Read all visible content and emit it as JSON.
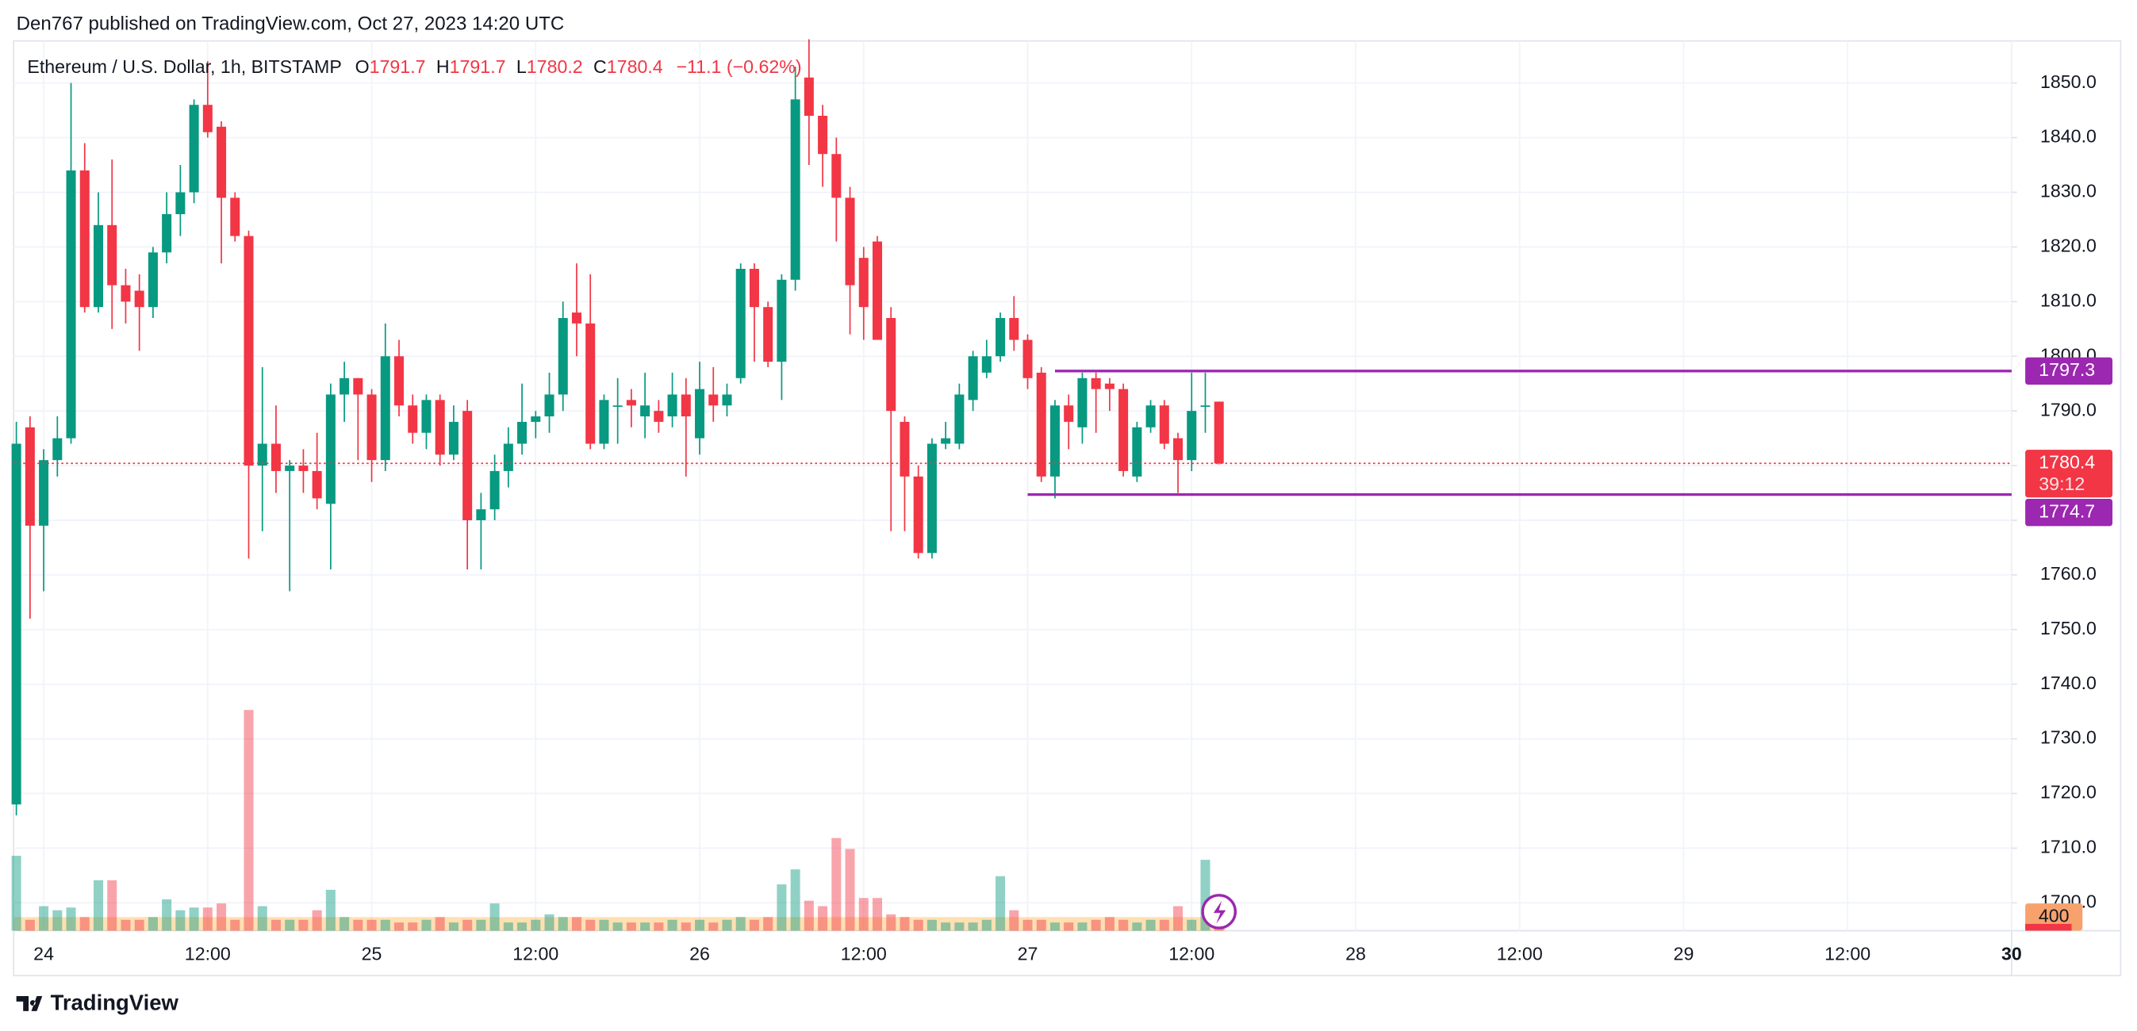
{
  "header": {
    "publisher": "Den767 published on TradingView.com, Oct 27, 2023 14:20 UTC"
  },
  "footer": {
    "brand": "TradingView"
  },
  "chart_data": {
    "type": "candlestick",
    "title": "Ethereum / U.S. Dollar, 1h, BITSTAMP",
    "ohlc_letters": [
      "O",
      "H",
      "L",
      "C"
    ],
    "change_label": "−11.1 (−0.62%)",
    "countdown": "39:12",
    "up_color": "#089981",
    "down_color": "#f23645",
    "x": [
      "2023-10-23 22:00",
      "2023-10-23 23:00",
      "2023-10-24 00:00",
      "2023-10-24 01:00",
      "2023-10-24 02:00",
      "2023-10-24 03:00",
      "2023-10-24 04:00",
      "2023-10-24 05:00",
      "2023-10-24 06:00",
      "2023-10-24 07:00",
      "2023-10-24 08:00",
      "2023-10-24 09:00",
      "2023-10-24 10:00",
      "2023-10-24 11:00",
      "2023-10-24 12:00",
      "2023-10-24 13:00",
      "2023-10-24 14:00",
      "2023-10-24 15:00",
      "2023-10-24 16:00",
      "2023-10-24 17:00",
      "2023-10-24 18:00",
      "2023-10-24 19:00",
      "2023-10-24 20:00",
      "2023-10-24 21:00",
      "2023-10-24 22:00",
      "2023-10-24 23:00",
      "2023-10-25 00:00",
      "2023-10-25 01:00",
      "2023-10-25 02:00",
      "2023-10-25 03:00",
      "2023-10-25 04:00",
      "2023-10-25 05:00",
      "2023-10-25 06:00",
      "2023-10-25 07:00",
      "2023-10-25 08:00",
      "2023-10-25 09:00",
      "2023-10-25 10:00",
      "2023-10-25 11:00",
      "2023-10-25 12:00",
      "2023-10-25 13:00",
      "2023-10-25 14:00",
      "2023-10-25 15:00",
      "2023-10-25 16:00",
      "2023-10-25 17:00",
      "2023-10-25 18:00",
      "2023-10-25 19:00",
      "2023-10-25 20:00",
      "2023-10-25 21:00",
      "2023-10-25 22:00",
      "2023-10-25 23:00",
      "2023-10-26 00:00",
      "2023-10-26 01:00",
      "2023-10-26 02:00",
      "2023-10-26 03:00",
      "2023-10-26 04:00",
      "2023-10-26 05:00",
      "2023-10-26 06:00",
      "2023-10-26 07:00",
      "2023-10-26 08:00",
      "2023-10-26 09:00",
      "2023-10-26 10:00",
      "2023-10-26 11:00",
      "2023-10-26 12:00",
      "2023-10-26 13:00",
      "2023-10-26 14:00",
      "2023-10-26 15:00",
      "2023-10-26 16:00",
      "2023-10-26 17:00",
      "2023-10-26 18:00",
      "2023-10-26 19:00",
      "2023-10-26 20:00",
      "2023-10-26 21:00",
      "2023-10-26 22:00",
      "2023-10-26 23:00",
      "2023-10-27 00:00",
      "2023-10-27 01:00",
      "2023-10-27 02:00",
      "2023-10-27 03:00",
      "2023-10-27 04:00",
      "2023-10-27 05:00",
      "2023-10-27 06:00",
      "2023-10-27 07:00",
      "2023-10-27 08:00",
      "2023-10-27 09:00",
      "2023-10-27 10:00",
      "2023-10-27 11:00",
      "2023-10-27 12:00",
      "2023-10-27 13:00",
      "2023-10-27 14:00"
    ],
    "open": [
      1718,
      1787,
      1769,
      1781,
      1785,
      1834,
      1809,
      1824,
      1813,
      1812,
      1809,
      1819,
      1826,
      1830,
      1846,
      1842,
      1829,
      1822,
      1780,
      1784,
      1779,
      1780,
      1779,
      1773,
      1793,
      1796,
      1793,
      1781,
      1800,
      1791,
      1786,
      1792,
      1782,
      1790,
      1770,
      1772,
      1779,
      1784,
      1788,
      1789,
      1793,
      1808,
      1806,
      1784,
      1791,
      1792,
      1789,
      1790,
      1789,
      1793,
      1785,
      1793,
      1791,
      1796,
      1816,
      1809,
      1799,
      1814,
      1851,
      1844,
      1837,
      1829,
      1818,
      1821,
      1807,
      1788,
      1778,
      1764,
      1784,
      1784,
      1792,
      1797,
      1800,
      1807,
      1803,
      1797,
      1778,
      1791,
      1787,
      1796,
      1795,
      1794,
      1778,
      1787,
      1791,
      1785,
      1781,
      1791,
      1791.7
    ],
    "high": [
      1788,
      1789,
      1783,
      1789,
      1850,
      1839,
      1830,
      1836,
      1816,
      1815,
      1820,
      1830,
      1835,
      1847,
      1854,
      1843,
      1830,
      1823,
      1798,
      1791,
      1781,
      1783,
      1786,
      1795,
      1799,
      1796,
      1794,
      1806,
      1803,
      1793,
      1793,
      1793,
      1791,
      1792,
      1775,
      1782,
      1787,
      1795,
      1790,
      1797,
      1810,
      1817,
      1815,
      1793,
      1796,
      1794,
      1797,
      1792,
      1797,
      1796,
      1799,
      1798,
      1795,
      1817,
      1817,
      1810,
      1815,
      1853,
      1858,
      1846,
      1840,
      1831,
      1820,
      1822,
      1809,
      1789,
      1780,
      1785,
      1788,
      1795,
      1801,
      1803,
      1808,
      1811,
      1804,
      1798,
      1792,
      1793,
      1797,
      1797,
      1796,
      1795,
      1788,
      1792,
      1792,
      1786,
      1797,
      1797,
      1791.7
    ],
    "low": [
      1716,
      1752,
      1757,
      1778,
      1784,
      1808,
      1808,
      1805,
      1806,
      1801,
      1807,
      1817,
      1822,
      1828,
      1840,
      1817,
      1821,
      1763,
      1768,
      1775,
      1757,
      1775,
      1772,
      1761,
      1788,
      1781,
      1777,
      1779,
      1789,
      1784,
      1783,
      1780,
      1781,
      1761,
      1761,
      1770,
      1776,
      1782,
      1785,
      1786,
      1790,
      1800,
      1783,
      1783,
      1784,
      1787,
      1785,
      1786,
      1787,
      1778,
      1782,
      1788,
      1789,
      1795,
      1799,
      1798,
      1792,
      1812,
      1835,
      1831,
      1821,
      1804,
      1803,
      1803,
      1768,
      1768,
      1763,
      1763,
      1783,
      1783,
      1790,
      1796,
      1799,
      1801,
      1794,
      1777,
      1774,
      1783,
      1784,
      1786,
      1790,
      1778,
      1777,
      1786,
      1783,
      1775,
      1779,
      1786,
      1780.2
    ],
    "close": [
      1784,
      1769,
      1781,
      1785,
      1834,
      1809,
      1824,
      1813,
      1810,
      1809,
      1819,
      1826,
      1830,
      1846,
      1841,
      1829,
      1822,
      1780,
      1784,
      1779,
      1780,
      1779,
      1774,
      1793,
      1796,
      1793,
      1781,
      1800,
      1791,
      1786,
      1792,
      1782,
      1788,
      1770,
      1772,
      1779,
      1784,
      1788,
      1789,
      1793,
      1807,
      1806,
      1784,
      1792,
      1791,
      1791,
      1791,
      1788,
      1793,
      1789,
      1794,
      1791,
      1793,
      1816,
      1809,
      1799,
      1814,
      1847,
      1844,
      1837,
      1829,
      1813,
      1809,
      1803,
      1790,
      1778,
      1764,
      1784,
      1785,
      1793,
      1800,
      1800,
      1807,
      1803,
      1796,
      1778,
      1791,
      1788,
      1796,
      1794,
      1794,
      1779,
      1787,
      1791,
      1784,
      1781,
      1790,
      1791,
      1780.4
    ],
    "volume": [
      2200,
      320,
      720,
      600,
      680,
      400,
      1480,
      1480,
      320,
      320,
      400,
      920,
      600,
      680,
      680,
      800,
      320,
      6480,
      720,
      320,
      320,
      320,
      600,
      1200,
      400,
      320,
      320,
      320,
      240,
      240,
      320,
      400,
      240,
      320,
      320,
      800,
      240,
      240,
      320,
      480,
      400,
      400,
      320,
      320,
      240,
      240,
      240,
      240,
      320,
      240,
      320,
      240,
      320,
      400,
      320,
      400,
      1360,
      1800,
      880,
      720,
      2720,
      2400,
      960,
      960,
      480,
      400,
      320,
      320,
      240,
      240,
      240,
      320,
      1600,
      600,
      320,
      320,
      240,
      240,
      240,
      320,
      400,
      320,
      240,
      320,
      320,
      720,
      320,
      2080,
      480
    ],
    "volume_ylim": [
      0,
      26120
    ],
    "volume_ma": 400,
    "hlines": [
      {
        "value": 1797.3,
        "start": "2023-10-27 02:00",
        "color": "#9c27b0"
      },
      {
        "value": 1774.7,
        "start": "2023-10-27 00:00",
        "color": "#9c27b0"
      }
    ],
    "ylim": [
      1694.9,
      1857.7
    ],
    "yticks": [
      {
        "value": 1700,
        "label": "1700.0"
      },
      {
        "value": 1710,
        "label": "1710.0"
      },
      {
        "value": 1720,
        "label": "1720.0"
      },
      {
        "value": 1730,
        "label": "1730.0"
      },
      {
        "value": 1740,
        "label": "1740.0"
      },
      {
        "value": 1750,
        "label": "1750.0"
      },
      {
        "value": 1760,
        "label": "1760.0"
      },
      {
        "value": 1770,
        "label": "1770.0"
      },
      {
        "value": 1780,
        "label": "1780.0"
      },
      {
        "value": 1790,
        "label": "1790.0"
      },
      {
        "value": 1800,
        "label": "1800.0"
      },
      {
        "value": 1810,
        "label": "1810.0"
      },
      {
        "value": 1820,
        "label": "1820.0"
      },
      {
        "value": 1830,
        "label": "1830.0"
      },
      {
        "value": 1840,
        "label": "1840.0"
      },
      {
        "value": 1850,
        "label": "1850.0"
      }
    ],
    "xlim": [
      "2023-10-23 21:48",
      "2023-10-30 00:00"
    ],
    "xticks": [
      {
        "value": "2023-10-24 00:00",
        "label": "24"
      },
      {
        "value": "2023-10-24 12:00",
        "label": "12:00"
      },
      {
        "value": "2023-10-25 00:00",
        "label": "25"
      },
      {
        "value": "2023-10-25 12:00",
        "label": "12:00"
      },
      {
        "value": "2023-10-26 00:00",
        "label": "26"
      },
      {
        "value": "2023-10-26 12:00",
        "label": "12:00"
      },
      {
        "value": "2023-10-27 00:00",
        "label": "27"
      },
      {
        "value": "2023-10-27 12:00",
        "label": "12:00"
      },
      {
        "value": "2023-10-28 00:00",
        "label": "28"
      },
      {
        "value": "2023-10-28 12:00",
        "label": "12:00"
      },
      {
        "value": "2023-10-29 00:00",
        "label": "29"
      },
      {
        "value": "2023-10-29 12:00",
        "label": "12:00"
      },
      {
        "value": "2023-10-30 00:00",
        "label": "30"
      }
    ],
    "grid": true
  }
}
